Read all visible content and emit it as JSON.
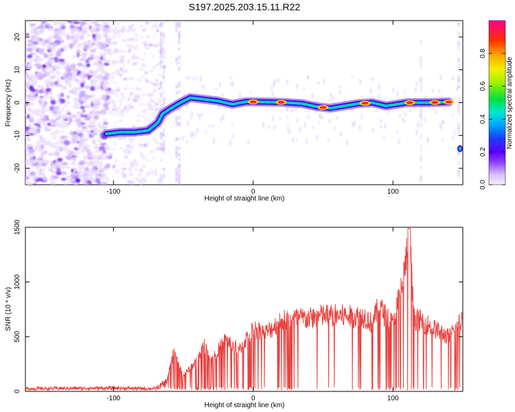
{
  "title": "S197.2025.203.15.11.R22",
  "colors": {
    "snr_line": "#e8423f",
    "spec_bg": "#ffffff",
    "axis": "#000000"
  },
  "chart_data": [
    {
      "type": "heatmap",
      "xlabel": "Height of straight line (km)",
      "ylabel": "Frequency (Hz)",
      "xlim": [
        -163,
        150
      ],
      "ylim": [
        -25,
        25
      ],
      "xticks": [
        -100,
        0,
        100
      ],
      "yticks": [
        -20,
        -10,
        0,
        10,
        20
      ],
      "colorbar": {
        "label": "Normalized spectral amplitude",
        "range": [
          0,
          1
        ],
        "ticks": [
          0.0,
          0.2,
          0.4,
          0.6,
          0.8
        ],
        "tick_labels": [
          "0.0",
          "0.2",
          "0.4",
          "0.6",
          "0.8"
        ],
        "colormap": "rainbow"
      },
      "ridge": {
        "points": [
          [
            -105,
            -9.5
          ],
          [
            -95,
            -9
          ],
          [
            -85,
            -9
          ],
          [
            -75,
            -8.5
          ],
          [
            -68,
            -6
          ],
          [
            -65,
            -3.5
          ],
          [
            -60,
            -2
          ],
          [
            -52,
            0
          ],
          [
            -45,
            1.5
          ],
          [
            -35,
            1
          ],
          [
            -25,
            0.5
          ],
          [
            -15,
            -0.5
          ],
          [
            -5,
            0.3
          ],
          [
            5,
            0.2
          ],
          [
            20,
            0.1
          ],
          [
            35,
            -0.3
          ],
          [
            45,
            -1.2
          ],
          [
            55,
            -1.7
          ],
          [
            65,
            -1.0
          ],
          [
            75,
            -0.3
          ],
          [
            85,
            0.0
          ],
          [
            95,
            -1.0
          ],
          [
            110,
            0.0
          ],
          [
            125,
            0.0
          ],
          [
            140,
            0.2
          ]
        ],
        "peaks_x": [
          0,
          20,
          50,
          80,
          112,
          130,
          140
        ]
      }
    },
    {
      "type": "line",
      "xlabel": "Height of straight line (km)",
      "ylabel": "SNR (10 * v/v)",
      "xlim": [
        -163,
        150
      ],
      "ylim": [
        0,
        1500
      ],
      "xticks": [
        -100,
        0,
        100
      ],
      "yticks": [
        0,
        500,
        1000,
        1500
      ],
      "series": [
        {
          "segments": [
            [
              -163,
              25
            ],
            [
              -100,
              30
            ],
            [
              -70,
              25
            ],
            [
              -62,
              80
            ],
            [
              -57,
              380
            ],
            [
              -50,
              150
            ],
            [
              -40,
              300
            ],
            [
              -35,
              450
            ],
            [
              -30,
              300
            ],
            [
              -20,
              500
            ],
            [
              -10,
              400
            ],
            [
              0,
              600
            ],
            [
              10,
              570
            ],
            [
              20,
              680
            ],
            [
              30,
              700
            ],
            [
              40,
              700
            ],
            [
              50,
              730
            ],
            [
              60,
              730
            ],
            [
              70,
              720
            ],
            [
              80,
              720
            ],
            [
              85,
              650
            ],
            [
              90,
              820
            ],
            [
              95,
              720
            ],
            [
              100,
              650
            ],
            [
              107,
              1050
            ],
            [
              112,
              1500
            ],
            [
              115,
              700
            ],
            [
              120,
              680
            ],
            [
              130,
              600
            ],
            [
              140,
              520
            ],
            [
              150,
              700
            ]
          ]
        }
      ]
    }
  ]
}
